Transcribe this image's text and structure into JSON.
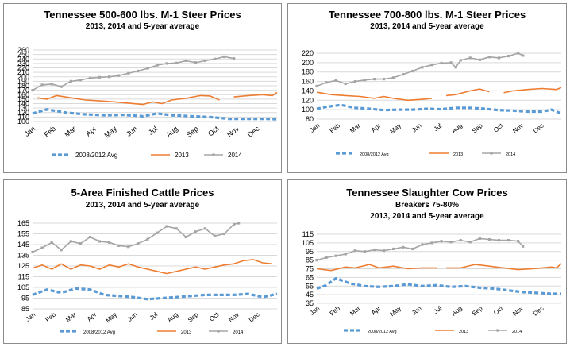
{
  "months": [
    "Jan",
    "Feb",
    "Mar",
    "Apr",
    "May",
    "Jun",
    "Jul",
    "Aug",
    "Sep",
    "Oct",
    "Nov",
    "Dec"
  ],
  "colors": {
    "avg": "#5b9bd5",
    "y2013": "#ed7d31",
    "y2014": "#a5a5a5",
    "grid": "#d9d9d9"
  },
  "chart_data": [
    {
      "type": "line",
      "title": "Tennessee 500-600 lbs. M-1 Steer Prices",
      "subtitle": [
        "2013, 2014 and 5-year average"
      ],
      "y_ticks": [
        100,
        110,
        120,
        130,
        140,
        150,
        160,
        170,
        180,
        190,
        200,
        210,
        220,
        230,
        240,
        250,
        260
      ],
      "ylim": [
        100,
        260
      ],
      "x_range": [
        1,
        52
      ],
      "grid": true,
      "legend_position": "bottom",
      "series": [
        {
          "name": "2008/2012 Avg",
          "key": "avg",
          "x": [
            1,
            4,
            8,
            12,
            16,
            20,
            24,
            27,
            30,
            34,
            38,
            42,
            46,
            50,
            52
          ],
          "values": [
            118,
            127,
            120,
            116,
            114,
            115,
            112,
            118,
            114,
            112,
            110,
            106,
            106,
            106,
            105
          ]
        },
        {
          "name": "2013",
          "key": "y2013",
          "x": [
            2,
            4,
            6,
            9,
            12,
            15,
            18,
            21,
            24,
            26,
            28,
            30,
            33,
            36,
            38,
            40,
            41,
            43,
            46,
            49,
            51,
            52
          ],
          "values": [
            153,
            150,
            158,
            153,
            148,
            146,
            144,
            141,
            138,
            144,
            140,
            148,
            152,
            158,
            157,
            148,
            null,
            155,
            158,
            160,
            158,
            165
          ]
        },
        {
          "name": "2014",
          "key": "y2014",
          "x": [
            1,
            3,
            5,
            7,
            9,
            11,
            13,
            15,
            17,
            19,
            21,
            23,
            25,
            27,
            29,
            31,
            33,
            35,
            37,
            39,
            41,
            43
          ],
          "values": [
            170,
            182,
            184,
            178,
            190,
            193,
            197,
            199,
            200,
            203,
            208,
            213,
            219,
            226,
            230,
            231,
            236,
            232,
            236,
            240,
            245,
            241
          ]
        }
      ]
    },
    {
      "type": "line",
      "title": "Tennessee 700-800 lbs. M-1 Steer Prices",
      "subtitle": [
        "2013, 2014 and 5-year average"
      ],
      "y_ticks": [
        80,
        100,
        120,
        140,
        160,
        180,
        200,
        220
      ],
      "ylim": [
        80,
        220
      ],
      "x_range": [
        1,
        52
      ],
      "grid": true,
      "legend_position": "bottom",
      "series": [
        {
          "name": "2008/2012 Avg",
          "key": "avg",
          "x": [
            1,
            3,
            6,
            9,
            12,
            15,
            18,
            21,
            24,
            27,
            30,
            33,
            36,
            39,
            42,
            45,
            48,
            50,
            52
          ],
          "values": [
            102,
            106,
            110,
            104,
            102,
            99,
            100,
            100,
            102,
            101,
            104,
            104,
            102,
            99,
            98,
            96,
            96,
            100,
            92
          ]
        },
        {
          "name": "2013",
          "key": "y2013",
          "x": [
            1,
            4,
            7,
            10,
            13,
            15,
            17,
            20,
            23,
            25,
            26,
            28,
            30,
            33,
            35,
            37,
            38,
            40,
            42,
            45,
            48,
            51,
            52
          ],
          "values": [
            137,
            132,
            130,
            128,
            124,
            128,
            124,
            120,
            122,
            124,
            null,
            130,
            132,
            140,
            144,
            138,
            null,
            136,
            140,
            143,
            145,
            143,
            147
          ]
        },
        {
          "name": "2014",
          "key": "y2014",
          "x": [
            1,
            3,
            5,
            7,
            9,
            11,
            13,
            15,
            17,
            19,
            21,
            23,
            25,
            27,
            29,
            30,
            31,
            33,
            35,
            37,
            39,
            41,
            43,
            44
          ],
          "values": [
            150,
            158,
            162,
            155,
            160,
            163,
            165,
            165,
            168,
            175,
            182,
            190,
            195,
            199,
            200,
            190,
            205,
            210,
            206,
            212,
            210,
            214,
            220,
            215
          ]
        }
      ]
    },
    {
      "type": "line",
      "title": "5-Area Finished Cattle Prices",
      "subtitle": [
        "2013, 2014 and 5-year average"
      ],
      "y_ticks": [
        85,
        95,
        105,
        115,
        125,
        135,
        145,
        155,
        165
      ],
      "ylim": [
        85,
        165
      ],
      "x_range": [
        1,
        52
      ],
      "grid": true,
      "legend_position": "bottom",
      "series": [
        {
          "name": "2008/2012 Avg",
          "key": "avg",
          "x": [
            1,
            4,
            7,
            10,
            13,
            16,
            19,
            22,
            25,
            28,
            31,
            34,
            37,
            40,
            43,
            46,
            49,
            52
          ],
          "values": [
            98,
            103,
            100,
            104,
            103,
            98,
            97,
            96,
            94,
            95,
            96,
            97,
            98,
            98,
            98,
            99,
            96,
            99
          ]
        },
        {
          "name": "2013",
          "key": "y2013",
          "x": [
            1,
            3,
            5,
            7,
            9,
            11,
            13,
            15,
            17,
            19,
            21,
            23,
            25,
            27,
            29,
            31,
            33,
            35,
            37,
            39,
            41,
            43,
            45,
            47,
            49,
            51
          ],
          "values": [
            123,
            126,
            122,
            127,
            122,
            126,
            125,
            122,
            126,
            124,
            127,
            124,
            122,
            120,
            118,
            120,
            122,
            124,
            122,
            124,
            126,
            127,
            130,
            131,
            128,
            127
          ]
        },
        {
          "name": "2014",
          "key": "y2014",
          "x": [
            1,
            3,
            5,
            7,
            9,
            11,
            13,
            15,
            17,
            19,
            21,
            23,
            25,
            27,
            29,
            31,
            33,
            35,
            37,
            39,
            41,
            43,
            44
          ],
          "values": [
            138,
            142,
            147,
            140,
            148,
            146,
            152,
            148,
            147,
            144,
            143,
            146,
            150,
            156,
            162,
            160,
            152,
            157,
            160,
            153,
            155,
            164,
            165
          ]
        }
      ]
    },
    {
      "type": "line",
      "title": "Tennessee Slaughter Cow Prices",
      "subtitle": [
        "Breakers 75-80%",
        "2013, 2014 and 5-year average"
      ],
      "y_ticks": [
        35,
        45,
        55,
        65,
        75,
        85,
        95,
        105,
        115
      ],
      "ylim": [
        35,
        115
      ],
      "x_range": [
        1,
        52
      ],
      "grid": true,
      "legend_position": "bottom",
      "series": [
        {
          "name": "2008/2012 Avg",
          "key": "avg",
          "x": [
            1,
            3,
            5,
            8,
            11,
            14,
            17,
            20,
            23,
            26,
            29,
            32,
            35,
            38,
            41,
            44,
            47,
            50,
            52
          ],
          "values": [
            52,
            56,
            64,
            58,
            55,
            54,
            55,
            57,
            55,
            56,
            54,
            55,
            53,
            52,
            50,
            48,
            47,
            46,
            46
          ]
        },
        {
          "name": "2013",
          "key": "y2013",
          "x": [
            1,
            4,
            7,
            9,
            12,
            14,
            17,
            20,
            23,
            26,
            27,
            28,
            31,
            34,
            37,
            40,
            43,
            46,
            48,
            50,
            51,
            52
          ],
          "values": [
            75,
            73,
            77,
            76,
            80,
            76,
            78,
            75,
            76,
            76,
            null,
            76,
            76,
            80,
            78,
            76,
            74,
            75,
            76,
            77,
            76,
            81
          ]
        },
        {
          "name": "2014",
          "key": "y2014",
          "x": [
            1,
            3,
            5,
            7,
            9,
            11,
            13,
            15,
            17,
            19,
            21,
            23,
            25,
            27,
            29,
            31,
            33,
            35,
            37,
            39,
            41,
            43,
            44
          ],
          "values": [
            85,
            88,
            90,
            92,
            96,
            95,
            97,
            96,
            98,
            100,
            98,
            103,
            105,
            107,
            106,
            108,
            106,
            110,
            109,
            108,
            108,
            107,
            101
          ]
        }
      ]
    }
  ]
}
